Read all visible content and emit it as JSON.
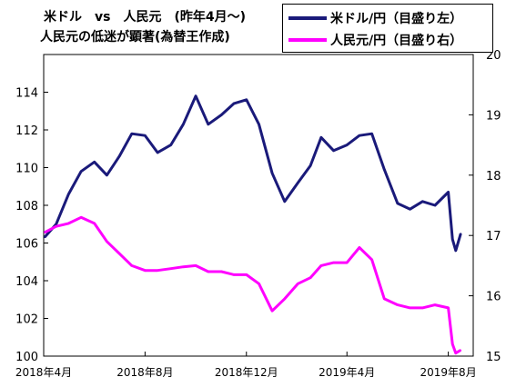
{
  "chart_data": {
    "type": "line",
    "title": [
      "米ドル　vs　人民元　(昨年4月～)",
      "人民元の低迷が顕著(為替王作成)"
    ],
    "x": [
      "2018-04-02",
      "2018-04-16",
      "2018-05-01",
      "2018-05-16",
      "2018-06-01",
      "2018-06-16",
      "2018-07-01",
      "2018-07-16",
      "2018-08-01",
      "2018-08-16",
      "2018-09-01",
      "2018-09-16",
      "2018-10-01",
      "2018-10-16",
      "2018-11-01",
      "2018-11-16",
      "2018-12-01",
      "2018-12-16",
      "2019-01-01",
      "2019-01-16",
      "2019-02-01",
      "2019-02-16",
      "2019-03-01",
      "2019-03-16",
      "2019-04-01",
      "2019-04-16",
      "2019-05-01",
      "2019-05-16",
      "2019-06-01",
      "2019-06-16",
      "2019-07-01",
      "2019-07-16",
      "2019-08-01",
      "2019-08-06",
      "2019-08-10",
      "2019-08-16"
    ],
    "x_ticks": {
      "labels": [
        "2018年4月",
        "2018年8月",
        "2018年12月",
        "2019年4月",
        "2019年8月"
      ],
      "dates": [
        "2018-04-01",
        "2018-08-01",
        "2018-12-01",
        "2019-04-01",
        "2019-08-01"
      ],
      "range": [
        "2018-04-01",
        "2019-08-31"
      ]
    },
    "series": [
      {
        "name": "米ドル/円（目盛り左）",
        "axis": "left",
        "color": "#1a1a7a",
        "values": [
          106.3,
          107.0,
          108.6,
          109.8,
          110.3,
          109.6,
          110.6,
          111.8,
          111.7,
          110.8,
          111.2,
          112.3,
          113.8,
          112.3,
          112.8,
          113.4,
          113.6,
          112.3,
          109.7,
          108.2,
          109.2,
          110.1,
          111.6,
          110.9,
          111.2,
          111.7,
          111.8,
          109.9,
          108.1,
          107.8,
          108.2,
          108.0,
          108.7,
          106.2,
          105.6,
          106.5
        ]
      },
      {
        "name": "人民元/円（目盛り右）",
        "axis": "right",
        "color": "#ff00ff",
        "values": [
          17.05,
          17.15,
          17.2,
          17.3,
          17.2,
          16.9,
          16.7,
          16.5,
          16.42,
          16.42,
          16.45,
          16.48,
          16.5,
          16.4,
          16.4,
          16.35,
          16.35,
          16.2,
          15.75,
          15.95,
          16.2,
          16.3,
          16.5,
          16.55,
          16.55,
          16.8,
          16.6,
          15.95,
          15.85,
          15.8,
          15.8,
          15.85,
          15.8,
          15.2,
          15.05,
          15.1
        ]
      }
    ],
    "y_left": {
      "ticks": [
        100,
        102,
        104,
        106,
        108,
        110,
        112,
        114
      ],
      "ylim": [
        100,
        116
      ]
    },
    "y_right": {
      "ticks": [
        15,
        16,
        17,
        18,
        19,
        20
      ],
      "ylim": [
        15,
        20
      ]
    },
    "legend": "top-right",
    "grid": false
  }
}
